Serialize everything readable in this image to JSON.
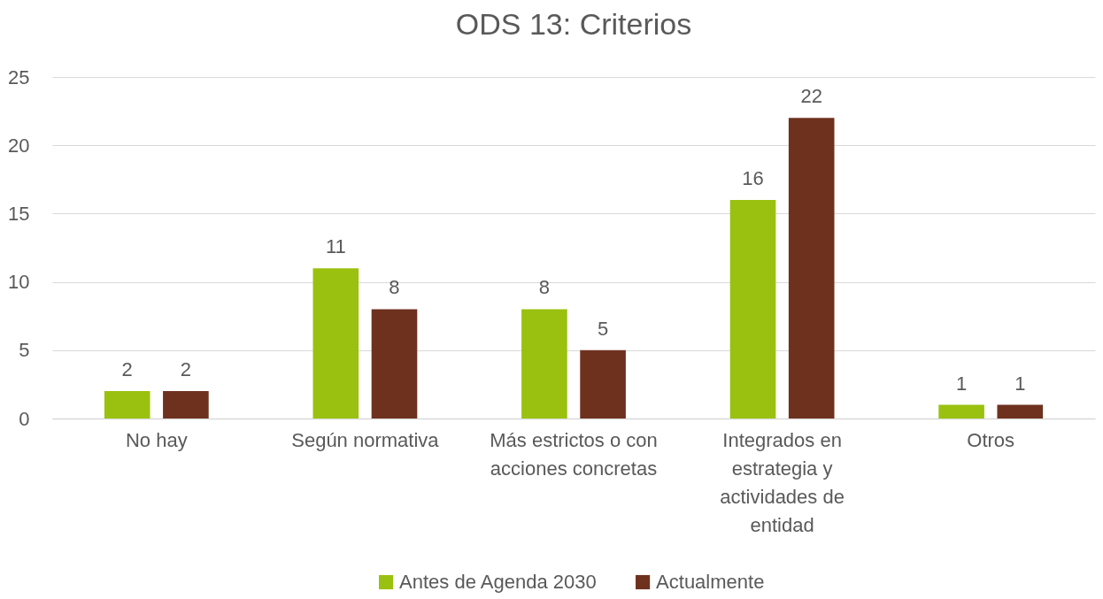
{
  "chart_data": {
    "type": "bar",
    "title": "ODS 13: Criterios",
    "categories": [
      "No hay",
      "Según normativa",
      "Más estrictos o con acciones concretas",
      "Integrados en estrategia y actividades de entidad",
      "Otros"
    ],
    "series": [
      {
        "name": "Antes de Agenda 2030",
        "color": "#9ac10f",
        "values": [
          2,
          11,
          8,
          16,
          1
        ]
      },
      {
        "name": "Actualmente",
        "color": "#6e311e",
        "values": [
          2,
          8,
          5,
          22,
          1
        ]
      }
    ],
    "ylim": [
      0,
      25
    ],
    "yticks": [
      0,
      5,
      10,
      15,
      20,
      25
    ],
    "grid": "y",
    "legend": "bottom",
    "data_labels": true
  }
}
